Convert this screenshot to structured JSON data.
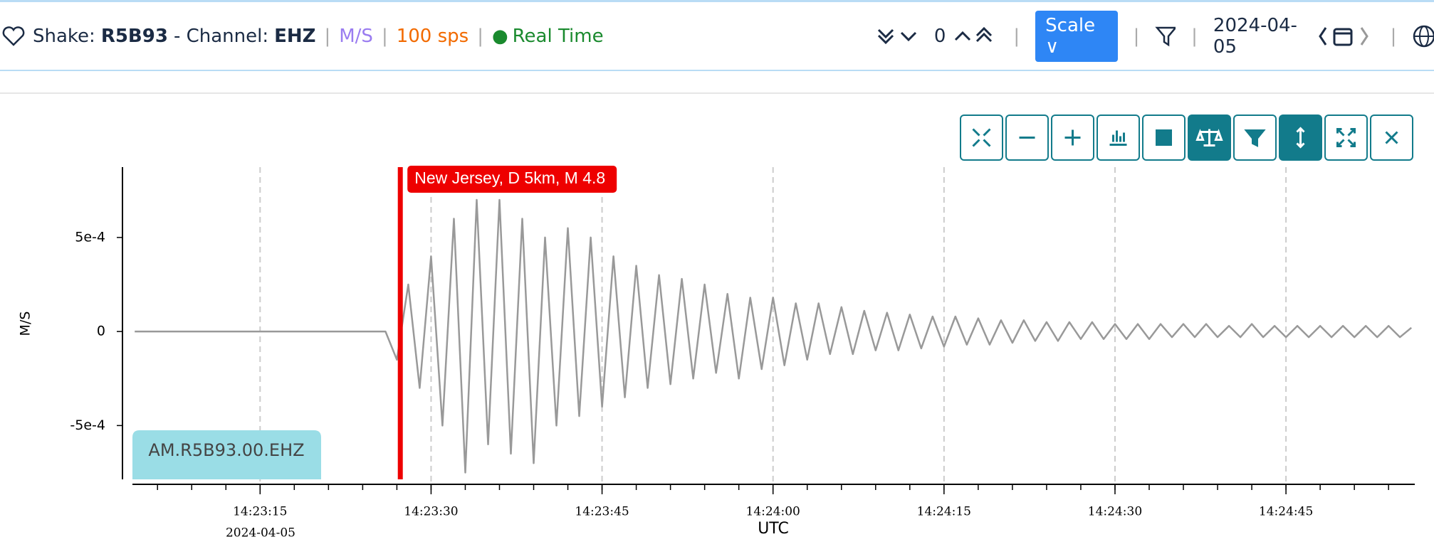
{
  "header": {
    "shake_label": "Shake:",
    "station": "R5B93",
    "channel_label": "- Channel:",
    "channel": "EHZ",
    "unit": "M/S",
    "rate": "100 sps",
    "status": "Real Time",
    "offset": "0",
    "scale_button": "Scale",
    "date": "2024-04-05"
  },
  "chart_data": {
    "type": "line",
    "ylabel": "M/S",
    "xlabel": "UTC",
    "x_date": "2024-04-05",
    "xlim": [
      51783.8,
      51896.3
    ],
    "xticks": [
      {
        "value": 51795,
        "label": "14:23:15"
      },
      {
        "value": 51810,
        "label": "14:23:30"
      },
      {
        "value": 51825,
        "label": "14:23:45"
      },
      {
        "value": 51840,
        "label": "14:24:00"
      },
      {
        "value": 51855,
        "label": "14:24:15"
      },
      {
        "value": 51870,
        "label": "14:24:30"
      },
      {
        "value": 51885,
        "label": "14:24:45"
      }
    ],
    "xminorticks": [
      51786,
      51789,
      51792,
      51795,
      51798,
      51801,
      51804,
      51807,
      51810,
      51813,
      51816,
      51819,
      51822,
      51825,
      51828,
      51831,
      51834,
      51837,
      51840,
      51843,
      51846,
      51849,
      51852,
      51855,
      51858,
      51861,
      51864,
      51867,
      51870,
      51873,
      51876,
      51879,
      51882,
      51885,
      51888,
      51891,
      51894
    ],
    "ylim": [
      -0.000786,
      0.000874
    ],
    "yticks": [
      {
        "value": -0.0005,
        "label": "-5e-4"
      },
      0,
      {
        "value": 0.0005,
        "label": "5e-4"
      }
    ],
    "grid": true,
    "events": [
      {
        "label": "New Jersey, D 5km, M 4.8",
        "time": 51807.3,
        "color": "#ee0000"
      }
    ],
    "x": [
      51784,
      51785,
      51786,
      51787,
      51788,
      51789,
      51790,
      51791,
      51792,
      51793,
      51794,
      51795,
      51796,
      51797,
      51798,
      51799,
      51800,
      51801,
      51802,
      51803,
      51804,
      51805,
      51806,
      51807,
      51808,
      51809,
      51810,
      51811,
      51812,
      51813,
      51814,
      51815,
      51816,
      51817,
      51818,
      51819,
      51820,
      51821,
      51822,
      51823,
      51824,
      51825,
      51826,
      51827,
      51828,
      51829,
      51830,
      51831,
      51832,
      51833,
      51834,
      51835,
      51836,
      51837,
      51838,
      51839,
      51840,
      51841,
      51842,
      51843,
      51844,
      51845,
      51846,
      51847,
      51848,
      51849,
      51850,
      51851,
      51852,
      51853,
      51854,
      51855,
      51856,
      51857,
      51858,
      51859,
      51860,
      51861,
      51862,
      51863,
      51864,
      51865,
      51866,
      51867,
      51868,
      51869,
      51870,
      51871,
      51872,
      51873,
      51874,
      51875,
      51876,
      51877,
      51878,
      51879,
      51880,
      51881,
      51882,
      51883,
      51884,
      51885,
      51886,
      51887,
      51888,
      51889,
      51890,
      51891,
      51892,
      51893,
      51894,
      51895,
      51896
    ],
    "series": [
      {
        "name": "AM.R5B93.00.EHZ",
        "color": "#999999",
        "values": [
          0,
          0,
          0,
          0,
          0,
          0,
          0,
          0,
          0,
          0,
          0,
          0,
          0,
          0,
          0,
          0,
          0,
          0,
          0,
          0,
          0,
          0,
          0,
          -0.00015,
          0.00025,
          -0.0003,
          0.0004,
          -0.0005,
          0.0006,
          -0.00075,
          0.0007,
          -0.0006,
          0.0007,
          -0.00065,
          0.0006,
          -0.0007,
          0.0005,
          -0.0005,
          0.00055,
          -0.00045,
          0.0005,
          -0.0004,
          0.0004,
          -0.00035,
          0.00035,
          -0.0003,
          0.0003,
          -0.00028,
          0.00028,
          -0.00025,
          0.00025,
          -0.00022,
          0.0002,
          -0.00025,
          0.00018,
          -0.0002,
          0.00018,
          -0.00018,
          0.00015,
          -0.00015,
          0.00015,
          -0.00012,
          0.00013,
          -0.00012,
          0.00011,
          -0.0001,
          0.0001,
          -0.0001,
          9e-05,
          -9e-05,
          8e-05,
          -8e-05,
          8e-05,
          -7e-05,
          7e-05,
          -7e-05,
          6e-05,
          -6e-05,
          6e-05,
          -5e-05,
          5e-05,
          -5e-05,
          5e-05,
          -4e-05,
          5e-05,
          -4e-05,
          4e-05,
          -4e-05,
          4e-05,
          -4e-05,
          4e-05,
          -3e-05,
          4e-05,
          -3e-05,
          4e-05,
          -3e-05,
          3e-05,
          -3e-05,
          4e-05,
          -3e-05,
          3e-05,
          -3e-05,
          3e-05,
          -3e-05,
          3e-05,
          -3e-05,
          3e-05,
          -3e-05,
          3e-05,
          -3e-05,
          3e-05,
          -3e-05,
          2e-05
        ]
      }
    ]
  }
}
